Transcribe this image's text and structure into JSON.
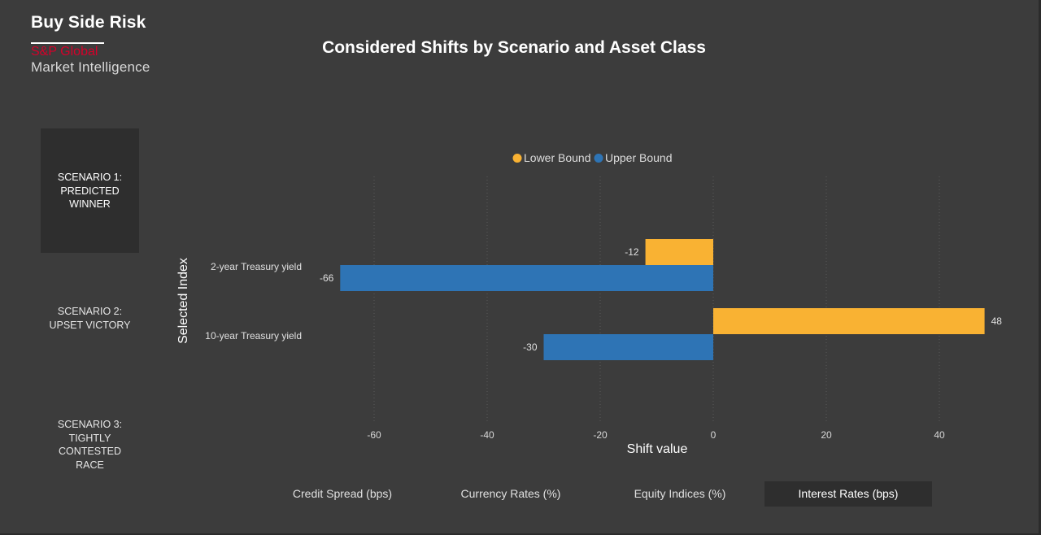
{
  "brand": {
    "title": "Buy Side Risk",
    "company_line1": "S&P Global",
    "company_line2": "Market Intelligence"
  },
  "page_title": "Considered Shifts by Scenario and Asset Class",
  "scenarios": [
    {
      "label": "SCENARIO 1: PREDICTED WINNER",
      "selected": true
    },
    {
      "label": "SCENARIO 2: UPSET VICTORY",
      "selected": false
    },
    {
      "label": "SCENARIO 3: TIGHTLY CONTESTED RACE",
      "selected": false
    }
  ],
  "asset_tabs": [
    {
      "label": "Credit Spread (bps)",
      "selected": false
    },
    {
      "label": "Currency Rates (%)",
      "selected": false
    },
    {
      "label": "Equity Indices (%)",
      "selected": false
    },
    {
      "label": "Interest Rates (bps)",
      "selected": true
    }
  ],
  "colors": {
    "lower_bound": "#f9b233",
    "upper_bound": "#2e74b5",
    "background": "#3c3c3c",
    "selected_bg": "#2e2e2e",
    "brand_red": "#d6002a"
  },
  "chart_data": {
    "type": "bar",
    "orientation": "horizontal",
    "title": "",
    "xlabel": "Shift value",
    "ylabel": "Selected Index",
    "categories": [
      "2-year Treasury yield",
      "10-year Treasury yield"
    ],
    "series": [
      {
        "name": "Lower Bound",
        "color": "#f9b233",
        "values": [
          -12,
          48
        ]
      },
      {
        "name": "Upper Bound",
        "color": "#2e74b5",
        "values": [
          -66,
          -30
        ]
      }
    ],
    "xticks": [
      -60,
      -40,
      -20,
      0,
      20,
      40
    ],
    "xlim": [
      -72,
      48
    ],
    "grid": true,
    "legend": "top-center"
  }
}
